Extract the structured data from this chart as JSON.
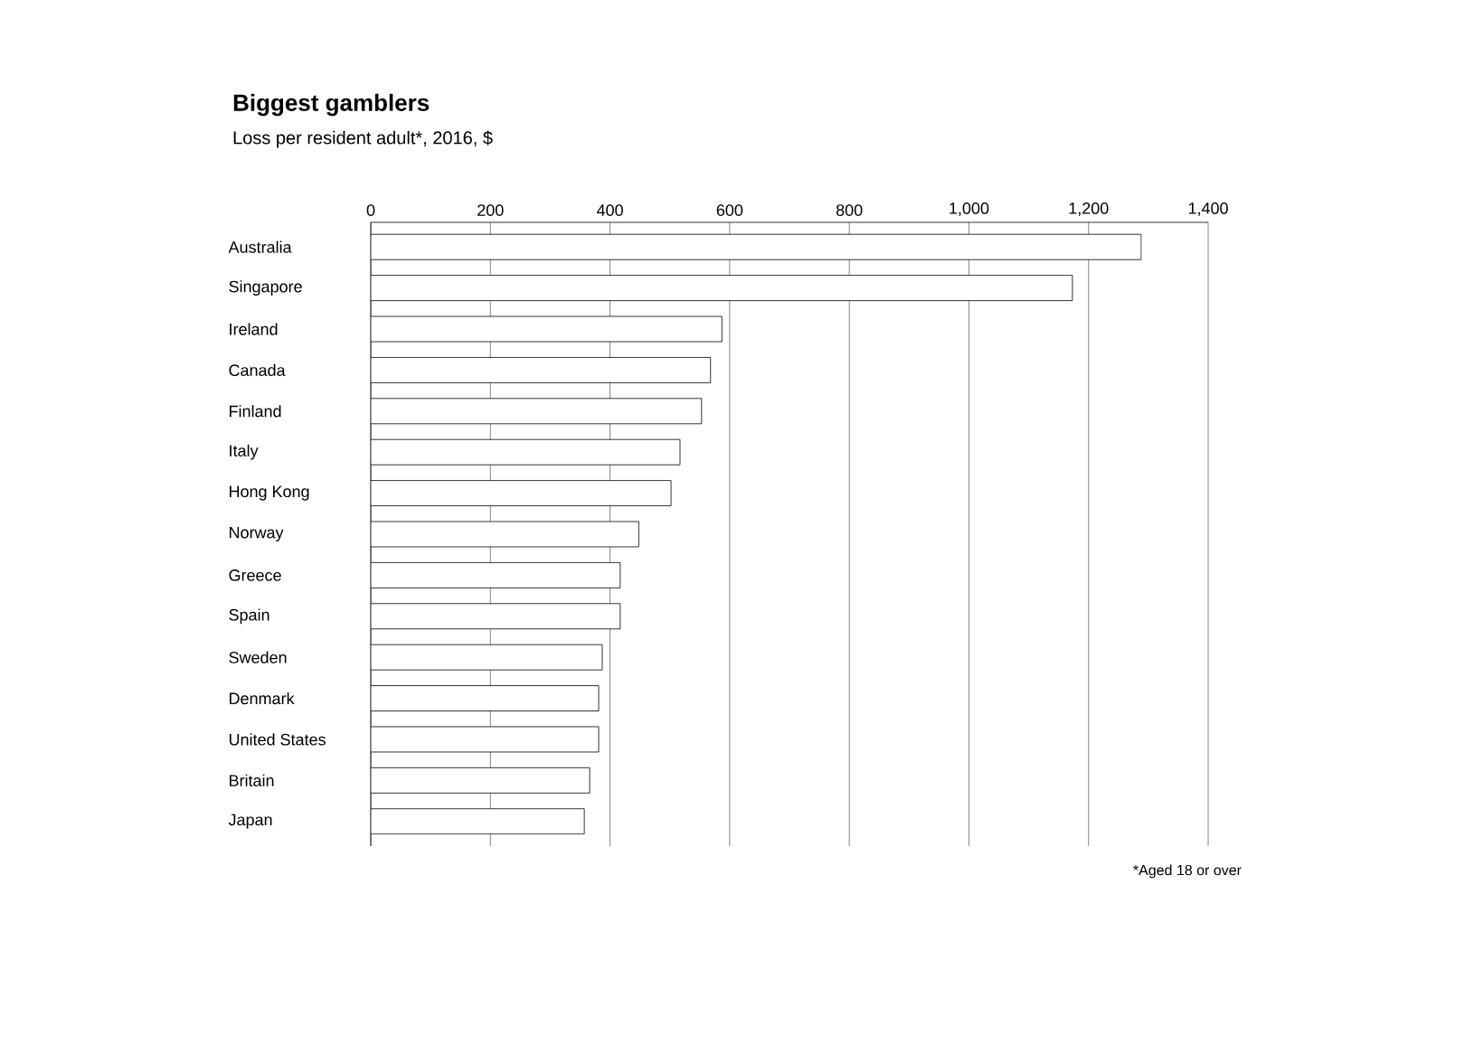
{
  "chart_data": {
    "type": "bar",
    "orientation": "horizontal",
    "title": "Biggest gamblers",
    "subtitle": "Loss per resident adult*, 2016, $",
    "categories": [
      "Australia",
      "Singapore",
      "Ireland",
      "Canada",
      "Finland",
      "Italy",
      "Hong Kong",
      "Norway",
      "Greece",
      "Spain",
      "Sweden",
      "Denmark",
      "United States",
      "Britain",
      "Japan"
    ],
    "values": [
      1288,
      1173,
      587,
      568,
      553,
      517,
      502,
      448,
      417,
      417,
      387,
      381,
      381,
      366,
      357
    ],
    "color": "#ffffff",
    "xlim": [
      0,
      1400
    ],
    "xticks": [
      0,
      {
        "value": 200,
        "label": "200"
      },
      {
        "value": 400,
        "label": "400"
      },
      {
        "value": 600,
        "label": "600"
      },
      {
        "value": 800,
        "label": "800"
      },
      {
        "value": 1000,
        "label": "1,000"
      },
      {
        "value": 1200,
        "label": "1,200"
      },
      {
        "value": 1400,
        "label": "1,400"
      }
    ],
    "grid": "x",
    "annotations": [
      "*Aged 18 or over"
    ]
  }
}
